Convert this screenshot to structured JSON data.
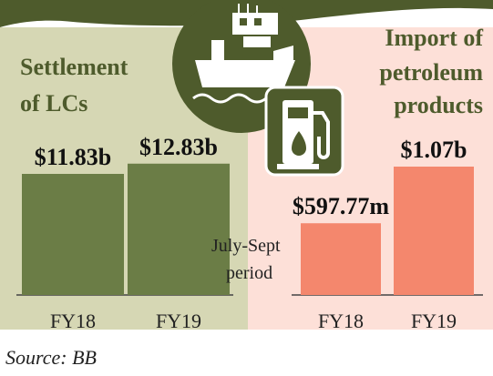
{
  "colors": {
    "left_bg": "#d6d7b4",
    "right_bg": "#fde0d8",
    "dark_green": "#4e5b2c",
    "bar_green": "#6b7d46",
    "bar_salmon": "#f4876d",
    "baseline": "#444444",
    "white": "#ffffff"
  },
  "icons": [
    "cargo-ship-icon",
    "fuel-pump-icon"
  ],
  "chart_data": [
    {
      "type": "bar",
      "title": "Settlement of LCs",
      "categories": [
        "FY18",
        "FY19"
      ],
      "values": [
        11.83,
        12.83
      ],
      "value_labels": [
        "$11.83b",
        "$12.83b"
      ],
      "unit": "billion USD"
    },
    {
      "type": "bar",
      "title": "Import of petroleum products",
      "categories": [
        "FY18",
        "FY19"
      ],
      "values": [
        0.59777,
        1.07
      ],
      "value_labels": [
        "$597.77m",
        "$1.07b"
      ],
      "unit": "billion USD"
    }
  ],
  "annotations": {
    "period_line1": "July-Sept",
    "period_line2": "period"
  },
  "source": "Source: BB"
}
